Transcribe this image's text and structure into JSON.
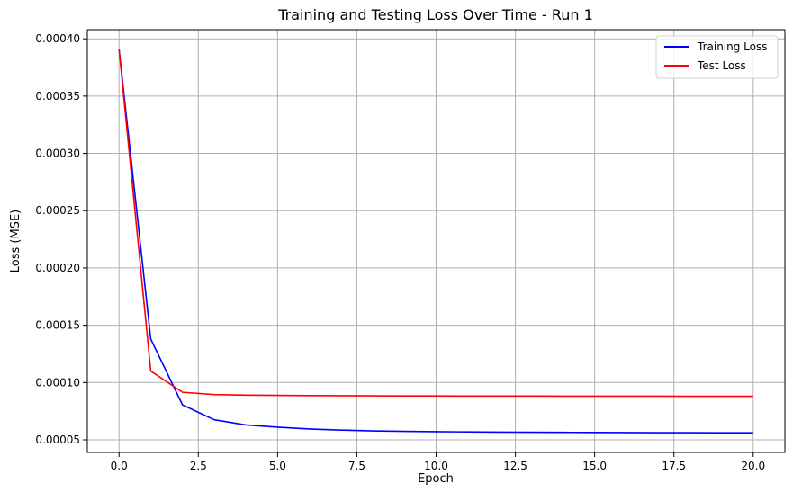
{
  "chart_data": {
    "type": "line",
    "title": "Training and Testing Loss Over Time - Run 1",
    "xlabel": "Epoch",
    "ylabel": "Loss (MSE)",
    "xlim": [
      -1,
      21
    ],
    "ylim": [
      3.9e-05,
      0.000408
    ],
    "grid": true,
    "legend_position": "top-right",
    "x_ticks": [
      0.0,
      2.5,
      5.0,
      7.5,
      10.0,
      12.5,
      15.0,
      17.5,
      20.0
    ],
    "x_tick_labels": [
      "0.0",
      "2.5",
      "5.0",
      "7.5",
      "10.0",
      "12.5",
      "15.0",
      "17.5",
      "20.0"
    ],
    "y_ticks": [
      5e-05,
      0.0001,
      0.00015,
      0.0002,
      0.00025,
      0.0003,
      0.00035,
      0.0004
    ],
    "y_tick_labels": [
      "0.00005",
      "0.00010",
      "0.00015",
      "0.00020",
      "0.00025",
      "0.00030",
      "0.00035",
      "0.00040"
    ],
    "x": [
      0,
      1,
      2,
      3,
      4,
      5,
      6,
      7,
      8,
      9,
      10,
      11,
      12,
      13,
      14,
      15,
      16,
      17,
      18,
      19,
      20
    ],
    "series": [
      {
        "name": "Training Loss",
        "color": "#0000ff",
        "values": [
          0.000391,
          0.000138,
          8.05e-05,
          6.75e-05,
          6.3e-05,
          6.1e-05,
          5.95e-05,
          5.85e-05,
          5.78e-05,
          5.74e-05,
          5.71e-05,
          5.69e-05,
          5.67e-05,
          5.66e-05,
          5.65e-05,
          5.64e-05,
          5.63e-05,
          5.62e-05,
          5.62e-05,
          5.61e-05,
          5.61e-05
        ]
      },
      {
        "name": "Test Loss",
        "color": "#ff0000",
        "values": [
          0.000391,
          0.00011,
          9.15e-05,
          8.95e-05,
          8.9e-05,
          8.88e-05,
          8.86e-05,
          8.85e-05,
          8.84e-05,
          8.83e-05,
          8.83e-05,
          8.82e-05,
          8.82e-05,
          8.82e-05,
          8.81e-05,
          8.81e-05,
          8.81e-05,
          8.81e-05,
          8.8e-05,
          8.8e-05,
          8.8e-05
        ]
      }
    ]
  }
}
